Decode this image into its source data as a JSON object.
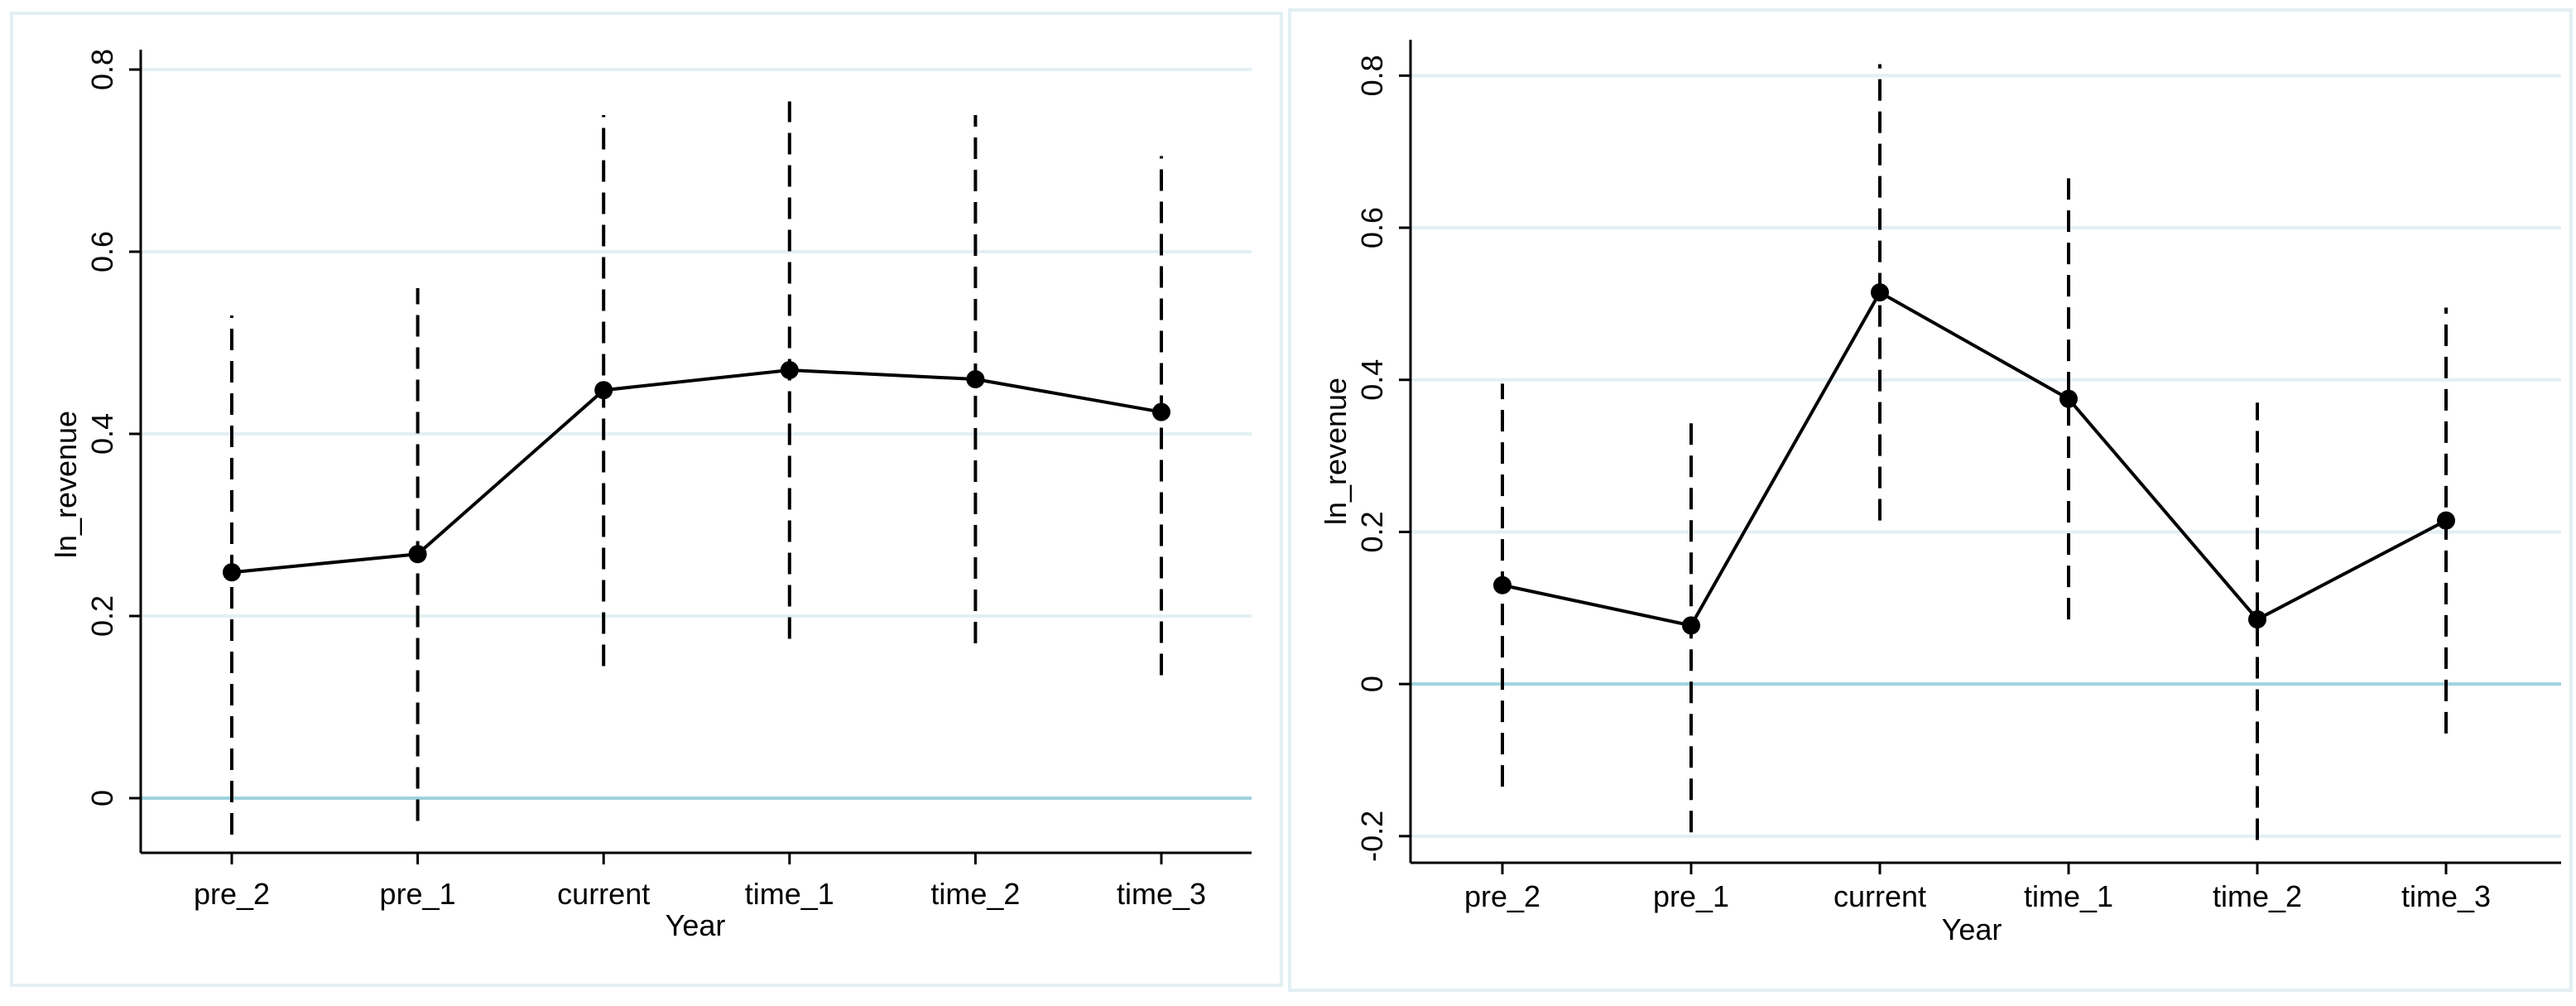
{
  "chart_data": [
    {
      "type": "line",
      "categories": [
        "pre_2",
        "pre_1",
        "current",
        "time_1",
        "time_2",
        "time_3"
      ],
      "series": [
        {
          "values": [
            0.248,
            0.268,
            0.448,
            0.47,
            0.46,
            0.424
          ],
          "ci_low": [
            -0.04,
            -0.025,
            0.145,
            0.175,
            0.17,
            0.135
          ],
          "ci_high": [
            0.53,
            0.56,
            0.75,
            0.765,
            0.75,
            0.705
          ]
        }
      ],
      "xlabel": "Year",
      "ylabel": "ln_revenue",
      "ylim": [
        -0.06,
        0.82
      ],
      "yticks": [
        0,
        0.2,
        0.4,
        0.6,
        0.8
      ],
      "ytick_labels": [
        "0",
        "0.2",
        "0.4",
        "0.6",
        "0.8"
      ],
      "reference_line": 0,
      "grid": true,
      "colors": {
        "line": "#000000",
        "grid": "#e3eff3",
        "reference": "#9fd3de",
        "ci": "#000000"
      }
    },
    {
      "type": "line",
      "categories": [
        "pre_2",
        "pre_1",
        "current",
        "time_1",
        "time_2",
        "time_3"
      ],
      "series": [
        {
          "values": [
            0.13,
            0.077,
            0.515,
            0.375,
            0.085,
            0.215
          ],
          "ci_low": [
            -0.135,
            -0.195,
            0.215,
            0.085,
            -0.205,
            -0.065
          ],
          "ci_high": [
            0.395,
            0.35,
            0.815,
            0.665,
            0.37,
            0.495
          ]
        }
      ],
      "xlabel": "Year",
      "ylabel": "ln_revenue",
      "ylim": [
        -0.235,
        0.845
      ],
      "yticks": [
        -0.2,
        0,
        0.2,
        0.4,
        0.6,
        0.8
      ],
      "ytick_labels": [
        "-0.2",
        "0",
        "0.2",
        "0.4",
        "0.6",
        "0.8"
      ],
      "reference_line": 0,
      "grid": true,
      "colors": {
        "line": "#000000",
        "grid": "#e3eff3",
        "reference": "#9fd3de",
        "ci": "#000000"
      }
    }
  ]
}
